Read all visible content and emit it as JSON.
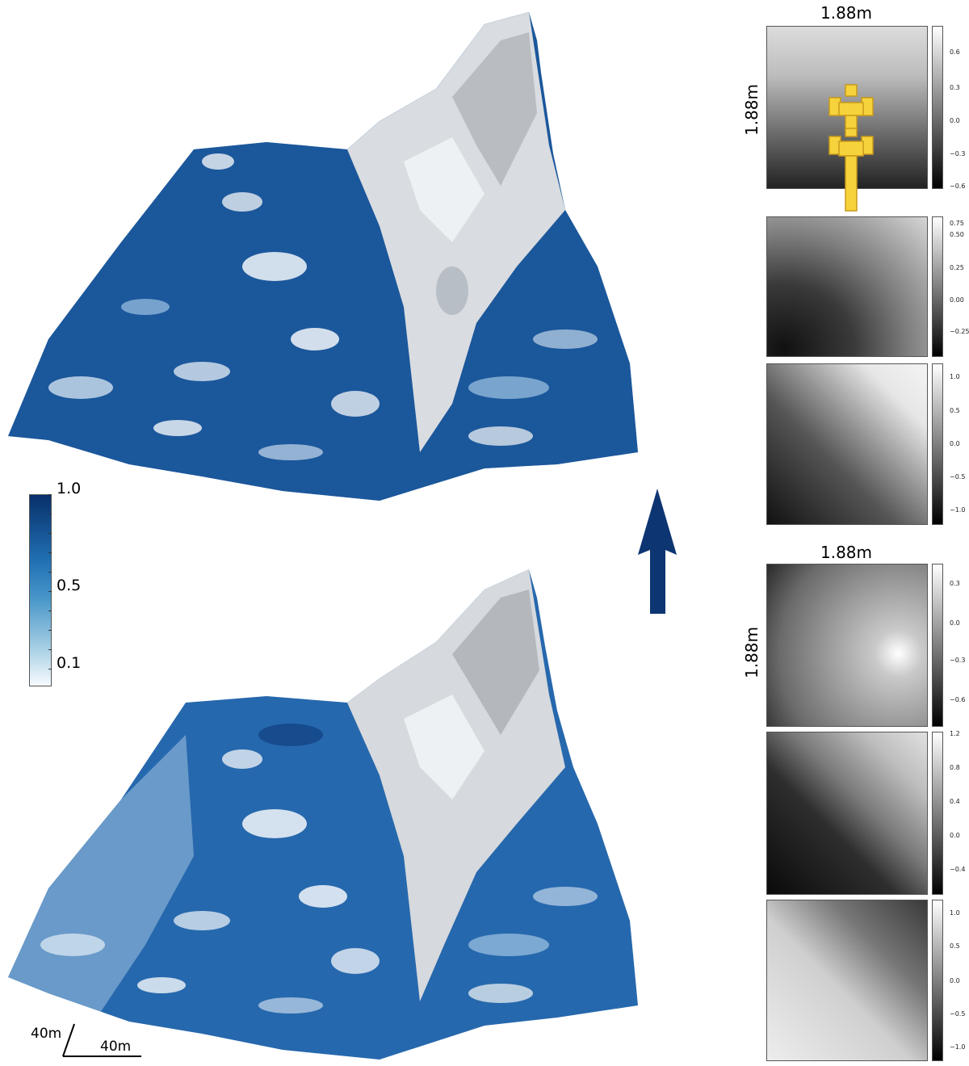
{
  "colorbar": {
    "ticks": [
      "1.0",
      "0.5",
      "0.1"
    ],
    "colors": {
      "top": "#08306b",
      "mid": "#4a98c9",
      "bottom": "#f7fbff"
    }
  },
  "scale": {
    "vertical": "40m",
    "horizontal": "40m"
  },
  "arrow": {
    "color": "#0d3572"
  },
  "groups": [
    {
      "title": "1.88m",
      "side_label": "1.88m",
      "patches": [
        {
          "ticks": [
            "0.6",
            "0.3",
            "0.0",
            "−0.3",
            "−0.6"
          ],
          "gradient": "linear-gradient(180deg,#dcdcdc 0%,#bdbdbd 30%,#6e6e6e 65%,#222 100%)"
        },
        {
          "ticks": [
            "0.75",
            "0.50",
            "0.25",
            "0.00",
            "−0.25"
          ],
          "gradient": "radial-gradient(ellipse at 10% 95%,#101010 0%,#3a3a3a 35%,#7a7a7a 60%,#d6d6d6 100%)"
        },
        {
          "ticks": [
            "1.0",
            "0.5",
            "0.0",
            "−0.5",
            "−1.0"
          ],
          "gradient": "linear-gradient(45deg,#111 0%,#555 40%,#8a8a8a 55%,#e6e6e6 80%,#f4f4f4 100%)"
        }
      ]
    },
    {
      "title": "1.88m",
      "side_label": "1.88m",
      "patches": [
        {
          "ticks": [
            "0.3",
            "0.0",
            "−0.3",
            "−0.6"
          ],
          "gradient": "radial-gradient(circle at 82% 55%,#ffffff 0%,#c9c9c9 15%,#9a9a9a 45%,#6a6a6a 75%,#2a2a2a 100%)"
        },
        {
          "ticks": [
            "1.2",
            "0.8",
            "0.4",
            "0.0",
            "−0.4"
          ],
          "gradient": "linear-gradient(45deg,#0a0a0a 0%,#2e2e2e 40%,#7a7a7a 58%,#bdbdbd 80%,#e0e0e0 100%)"
        },
        {
          "ticks": [
            "1.0",
            "0.5",
            "0.0",
            "−0.5",
            "−1.0"
          ],
          "gradient": "linear-gradient(225deg,#3a3a3a 0%,#777 30%,#cfcfcf 55%,#ededed 100%)"
        }
      ]
    }
  ],
  "marker": {
    "color": "#f6d33c"
  }
}
